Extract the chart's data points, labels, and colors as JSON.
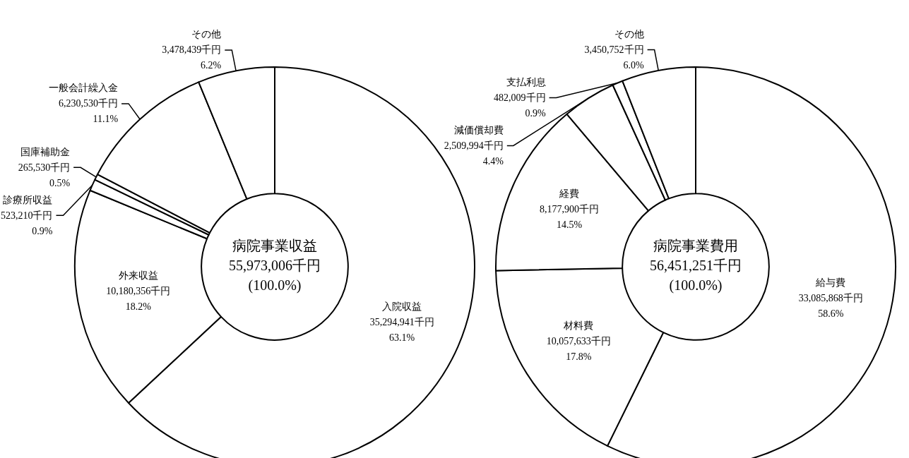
{
  "chart_data": [
    {
      "type": "donut",
      "title": "病院事業収益",
      "subtitle": "55,973,006千円",
      "annotations": [
        "(100.0%)"
      ],
      "categories": [
        "入院収益",
        "外来収益",
        "診療所収益",
        "国庫補助金",
        "一般会計繰入金",
        "その他"
      ],
      "values": [
        35294941,
        10180356,
        523210,
        265530,
        6230530,
        3478439
      ],
      "value_labels": [
        "35,294,941千円\n63.1%",
        "10,180,356千円\n18.2%",
        "523,210千円\n0.9%",
        "265,530千円\n0.5%",
        "6,230,530千円\n11.1%",
        "3,478,439千円\n6.2%"
      ],
      "colors": [
        "#ffffff",
        "#ffffff",
        "#ffffff",
        "#ffffff",
        "#ffffff",
        "#ffffff"
      ],
      "legend": false
    },
    {
      "type": "donut",
      "title": "病院事業費用",
      "subtitle": "56,451,251千円",
      "annotations": [
        "(100.0%)"
      ],
      "categories": [
        "給与費",
        "材料費",
        "経費",
        "減価償却費",
        "支払利息",
        "その他"
      ],
      "values": [
        33085868,
        10057633,
        8177900,
        2509994,
        482009,
        3450752
      ],
      "value_labels": [
        "33,085,868千円\n58.6%",
        "10,057,633千円\n17.8%",
        "8,177,900千円\n14.5%",
        "2,509,994千円\n4.4%",
        "482,009千円\n0.9%",
        "3,450,752千円\n6.0%"
      ],
      "colors": [
        "#ffffff",
        "#ffffff",
        "#ffffff",
        "#ffffff",
        "#ffffff",
        "#ffffff"
      ],
      "legend": false
    }
  ]
}
